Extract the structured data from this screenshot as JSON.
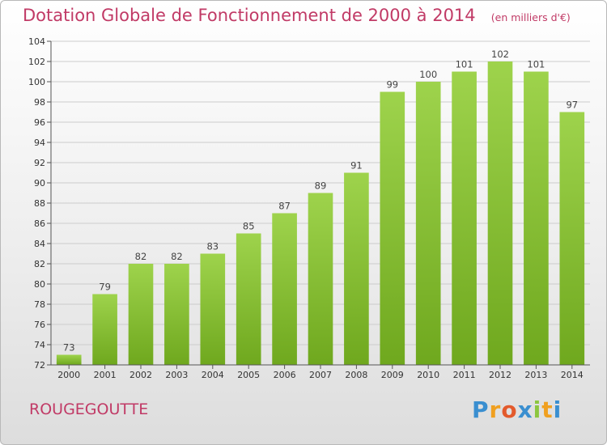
{
  "chart_data": {
    "type": "bar",
    "title": "Dotation Globale de Fonctionnement de 2000 à 2014",
    "subtitle": "(en milliers d'€)",
    "categories": [
      "2000",
      "2001",
      "2002",
      "2003",
      "2004",
      "2005",
      "2006",
      "2007",
      "2008",
      "2009",
      "2010",
      "2011",
      "2012",
      "2013",
      "2014"
    ],
    "values": [
      73,
      79,
      82,
      82,
      83,
      85,
      87,
      89,
      91,
      99,
      100,
      101,
      102,
      101,
      97
    ],
    "ylim": [
      72,
      104
    ],
    "yticks": [
      72,
      74,
      76,
      78,
      80,
      82,
      84,
      86,
      88,
      90,
      92,
      94,
      96,
      98,
      100,
      102,
      104
    ],
    "grid": true,
    "colors": {
      "bar_top": "#9ed34c",
      "bar_bottom": "#6fa81e",
      "grid": "#cccccc",
      "title": "#c13a66"
    }
  },
  "footer": {
    "commune": "ROUGEGOUTTE",
    "logo": {
      "text": "Proxiti",
      "letters": [
        "P",
        "r",
        "o",
        "x",
        "i",
        "t",
        "i"
      ],
      "colors": [
        "#3a8fd0",
        "#f0a020",
        "#e35a2c",
        "#3a8fd0",
        "#8cc63f",
        "#f0a020",
        "#3a8fd0"
      ]
    }
  }
}
